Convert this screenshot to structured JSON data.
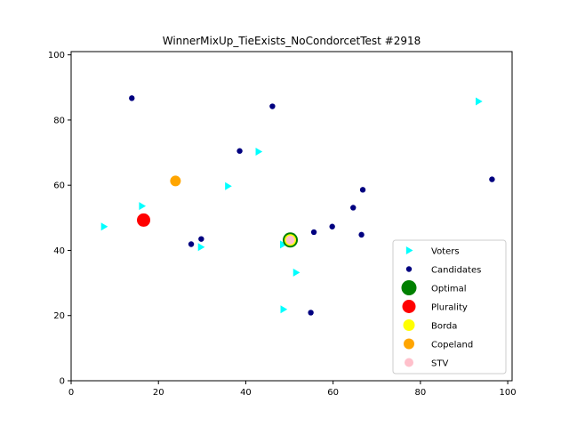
{
  "chart_data": {
    "type": "scatter",
    "title": "WinnerMixUp_TieExists_NoCondorcetTest #2918",
    "xlabel": "",
    "ylabel": "",
    "xlim": [
      0,
      101
    ],
    "ylim": [
      0,
      101
    ],
    "xticks": [
      "0",
      "20",
      "40",
      "60",
      "80",
      "100"
    ],
    "yticks": [
      "0",
      "20",
      "40",
      "60",
      "80",
      "100"
    ],
    "grid": false,
    "legend_position": "lower-right",
    "series": [
      {
        "name": "Voters",
        "marker": "triangle-right",
        "color": "#00ffff",
        "points": [
          [
            7.5,
            47.3
          ],
          [
            16.2,
            53.6
          ],
          [
            29.7,
            41.0
          ],
          [
            35.9,
            59.7
          ],
          [
            42.9,
            70.3
          ],
          [
            48.5,
            41.8
          ],
          [
            51.5,
            33.2
          ],
          [
            48.6,
            21.9
          ],
          [
            93.3,
            85.7
          ]
        ]
      },
      {
        "name": "Candidates",
        "marker": "circle",
        "color": "#000080",
        "points": [
          [
            13.9,
            86.7
          ],
          [
            46.1,
            84.2
          ],
          [
            38.6,
            70.5
          ],
          [
            27.5,
            41.9
          ],
          [
            29.8,
            43.5
          ],
          [
            55.6,
            45.6
          ],
          [
            59.8,
            47.3
          ],
          [
            64.6,
            53.1
          ],
          [
            66.8,
            58.6
          ],
          [
            66.5,
            44.8
          ],
          [
            96.4,
            61.8
          ],
          [
            54.9,
            20.9
          ]
        ]
      },
      {
        "name": "Optimal",
        "marker": "circle",
        "color": "#008000",
        "points": [
          [
            50.2,
            43.2
          ]
        ]
      },
      {
        "name": "Plurality",
        "marker": "circle",
        "color": "#ff0000",
        "points": [
          [
            16.6,
            49.3
          ]
        ]
      },
      {
        "name": "Borda",
        "marker": "circle",
        "color": "#ffff00",
        "points": [
          [
            50.2,
            43.2
          ]
        ]
      },
      {
        "name": "Copeland",
        "marker": "circle",
        "color": "#ffa500",
        "points": [
          [
            23.9,
            61.3
          ]
        ]
      },
      {
        "name": "STV",
        "marker": "circle",
        "color": "#ffc0cb",
        "points": [
          [
            50.2,
            43.2
          ]
        ]
      }
    ]
  }
}
